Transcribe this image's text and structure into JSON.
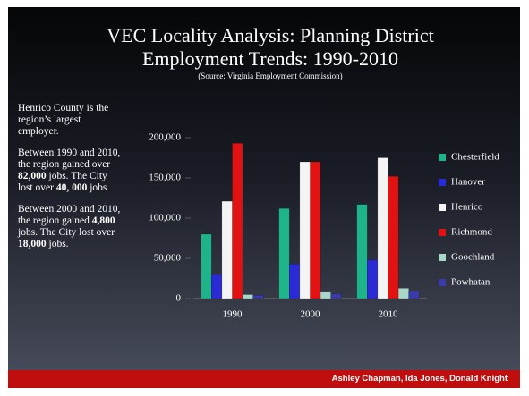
{
  "chart_data": {
    "type": "bar",
    "title": [
      "VEC Locality Analysis: Planning District",
      "Employment Trends: 1990-2010"
    ],
    "subtitle": "(Source: Virginia Employment Commission)",
    "categories": [
      "1990",
      "2000",
      "2010"
    ],
    "series": [
      {
        "name": "Chesterfield",
        "color": "#1fb38a",
        "values": [
          80000,
          112000,
          117000
        ]
      },
      {
        "name": "Hanover",
        "color": "#2b2bd6",
        "values": [
          30000,
          43000,
          48000
        ]
      },
      {
        "name": "Henrico",
        "color": "#f4f4f4",
        "values": [
          121000,
          170000,
          175000
        ]
      },
      {
        "name": "Richmond",
        "color": "#e01212",
        "values": [
          193000,
          170000,
          152000
        ]
      },
      {
        "name": "Goochland",
        "color": "#a8d8c8",
        "values": [
          5000,
          8000,
          13000
        ]
      },
      {
        "name": "Powhatan",
        "color": "#3a3aa8",
        "values": [
          4000,
          6000,
          9000
        ]
      }
    ],
    "ylim": [
      0,
      200000
    ],
    "yticks": [
      0,
      {
        "value": 50000,
        "label": "50,000"
      },
      {
        "value": 100000,
        "label": "100,000"
      },
      {
        "value": 150000,
        "label": "150,000"
      },
      {
        "value": 200000,
        "label": "200,000"
      }
    ],
    "legend": "right"
  },
  "side_text": [
    {
      "runs": [
        {
          "text": "Henrico County is the region’s largest employer."
        }
      ]
    },
    {
      "runs": [
        {
          "text": "Between 1990 and 2010, the region gained over "
        },
        {
          "text": "82,000",
          "bold": true
        },
        {
          "text": " jobs. The City lost over "
        },
        {
          "text": "40, 000",
          "bold": true
        },
        {
          "text": " jobs"
        }
      ]
    },
    {
      "runs": [
        {
          "text": "Between 2000 and 2010, the region gained "
        },
        {
          "text": "4,800",
          "bold": true
        },
        {
          "text": " jobs.  The City lost over "
        },
        {
          "text": "18,000",
          "bold": true
        },
        {
          "text": " jobs."
        }
      ]
    }
  ],
  "footer": "Ashley Chapman, Ida Jones, Donald Knight"
}
